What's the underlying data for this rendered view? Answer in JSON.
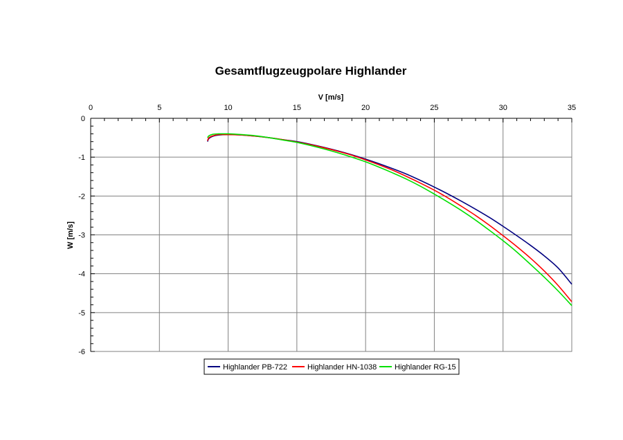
{
  "chart_data": {
    "type": "line",
    "title": "Gesamtflugzeugpolare Highlander",
    "xlabel": "V [m/s]",
    "ylabel": "W [m/s]",
    "xlim": [
      0,
      35
    ],
    "ylim": [
      -6,
      0
    ],
    "x_ticks": [
      0,
      5,
      10,
      15,
      20,
      25,
      30,
      35
    ],
    "y_ticks": [
      0,
      -1,
      -2,
      -3,
      -4,
      -5,
      -6
    ],
    "x_axis_position": "top",
    "grid": true,
    "legend_position": "bottom",
    "series": [
      {
        "name": "Highlander PB-722",
        "color": "#000080",
        "x": [
          8.5,
          8.6,
          8.9,
          9.3,
          10,
          11,
          12,
          13,
          14,
          15,
          16,
          17,
          18,
          19,
          20,
          21,
          22,
          23,
          24,
          25,
          26,
          27,
          28,
          29,
          30,
          31,
          32,
          33,
          34,
          35
        ],
        "y": [
          -0.6,
          -0.52,
          -0.46,
          -0.43,
          -0.42,
          -0.43,
          -0.46,
          -0.5,
          -0.55,
          -0.6,
          -0.67,
          -0.75,
          -0.84,
          -0.94,
          -1.05,
          -1.17,
          -1.3,
          -1.44,
          -1.6,
          -1.77,
          -1.95,
          -2.14,
          -2.34,
          -2.55,
          -2.78,
          -3.02,
          -3.27,
          -3.54,
          -3.85,
          -4.27
        ]
      },
      {
        "name": "Highlander HN-1038",
        "color": "#ff0000",
        "x": [
          8.5,
          8.6,
          8.9,
          9.3,
          10,
          11,
          12,
          13,
          14,
          15,
          16,
          17,
          18,
          19,
          20,
          21,
          22,
          23,
          24,
          25,
          26,
          27,
          28,
          29,
          30,
          31,
          32,
          33,
          34,
          35
        ],
        "y": [
          -0.58,
          -0.5,
          -0.45,
          -0.42,
          -0.42,
          -0.43,
          -0.46,
          -0.5,
          -0.55,
          -0.61,
          -0.68,
          -0.76,
          -0.85,
          -0.95,
          -1.07,
          -1.2,
          -1.34,
          -1.5,
          -1.67,
          -1.85,
          -2.05,
          -2.27,
          -2.5,
          -2.75,
          -3.02,
          -3.3,
          -3.6,
          -3.93,
          -4.3,
          -4.72
        ]
      },
      {
        "name": "Highlander RG-15",
        "color": "#00e000",
        "x": [
          8.5,
          8.6,
          8.9,
          9.3,
          10,
          11,
          12,
          13,
          14,
          15,
          16,
          17,
          18,
          19,
          20,
          21,
          22,
          23,
          24,
          25,
          26,
          27,
          28,
          29,
          30,
          31,
          32,
          33,
          34,
          35
        ],
        "y": [
          -0.5,
          -0.45,
          -0.41,
          -0.4,
          -0.4,
          -0.42,
          -0.45,
          -0.5,
          -0.56,
          -0.62,
          -0.7,
          -0.79,
          -0.89,
          -1.0,
          -1.12,
          -1.26,
          -1.41,
          -1.57,
          -1.75,
          -1.95,
          -2.16,
          -2.38,
          -2.62,
          -2.88,
          -3.15,
          -3.44,
          -3.76,
          -4.09,
          -4.44,
          -4.82
        ]
      }
    ]
  }
}
